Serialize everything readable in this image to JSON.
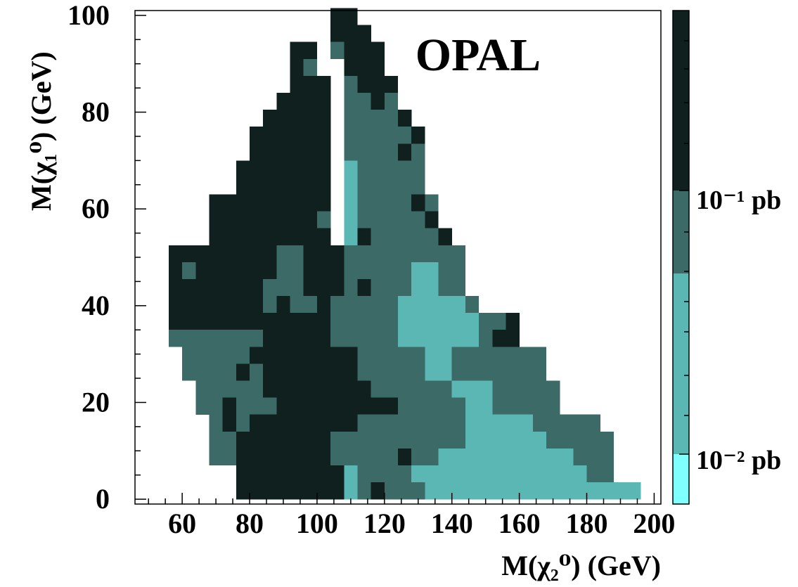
{
  "chart_data": {
    "type": "heatmap",
    "title": "",
    "xlabel": "M(χ₂⁰) (GeV)",
    "ylabel": "M(χ₁⁰) (GeV)",
    "xlim": [
      46,
      202
    ],
    "ylim": [
      -1,
      101
    ],
    "x_ticks": [
      60,
      80,
      100,
      120,
      140,
      160,
      180,
      200
    ],
    "y_ticks": [
      0,
      20,
      40,
      60,
      80,
      100
    ],
    "annotations": [
      "OPAL"
    ],
    "colorbar": {
      "labels": [
        "10⁻¹ pb",
        "10⁻² pb"
      ],
      "levels": [
        {
          "name": "level-highest",
          "color": "#0f201e"
        },
        {
          "name": "level-high",
          "color": "#3c6a67"
        },
        {
          "name": "level-low",
          "color": "#5ab7b4"
        },
        {
          "name": "level-lowest",
          "color": "#80ffff"
        }
      ]
    },
    "cells": {
      "x_bin_centers_gev": [
        58,
        62,
        66,
        70,
        74,
        78,
        82,
        86,
        90,
        94,
        98,
        102,
        106,
        110,
        114,
        118,
        122,
        126,
        130,
        134,
        138,
        142,
        146,
        150,
        154,
        158,
        162,
        166,
        170,
        174,
        178,
        182,
        186,
        190,
        194
      ],
      "y_bin_centers_gev": [
        1.75,
        5.25,
        8.75,
        12.25,
        15.75,
        19.25,
        22.75,
        26.25,
        29.75,
        33.25,
        36.75,
        40.25,
        43.75,
        47.25,
        50.75,
        54.25,
        57.75,
        61.25,
        64.75,
        68.25,
        71.75,
        75.25,
        78.75,
        82.25,
        85.75,
        89.25,
        92.75,
        96.25,
        99.75
      ],
      "legend": {
        "3": "darkest (above 10⁻¹ pb)",
        "2": "dark grey-green",
        "1": "medium cyan",
        "0": "lightest cyan",
        "space": "empty bin"
      },
      "rows_top_to_bottom": [
        "            33                     ",
        "            333                    ",
        "         33 2333                   ",
        "         32  333                   ",
        "         333 2333                  ",
        "        3333 2232                  ",
        "       33333 22223                 ",
        "      333333 222223                ",
        "      333333 222232                ",
        "     3333333 122222                ",
        "     3333333 122222                ",
        "   333333333 1222232               ",
        "   333333332 1222223               ",
        "   333333333 13222223              ",
        "3333333322333222222222             ",
        "3233333322333222221122             ",
        "3333333222333232221122             ",
        "33333332322322222111112            ",
        "33333333333322222111111223         ",
        "22222223333322222111111233         ",
        " 222223333333322222112222222        ",
        " 222232333333322222112222222        ",
        "  222223333333322222211122222       ",
        "  223222333333333222221122222       ",
        "   23233333333222222221111122222     ",
        "   223333333222222222211111122222   ",
        "   223333333222223221111111111222   ",
        "     3333333312222111111111111122  ",
        "     3333333312322211111111111111112 "
      ]
    }
  }
}
